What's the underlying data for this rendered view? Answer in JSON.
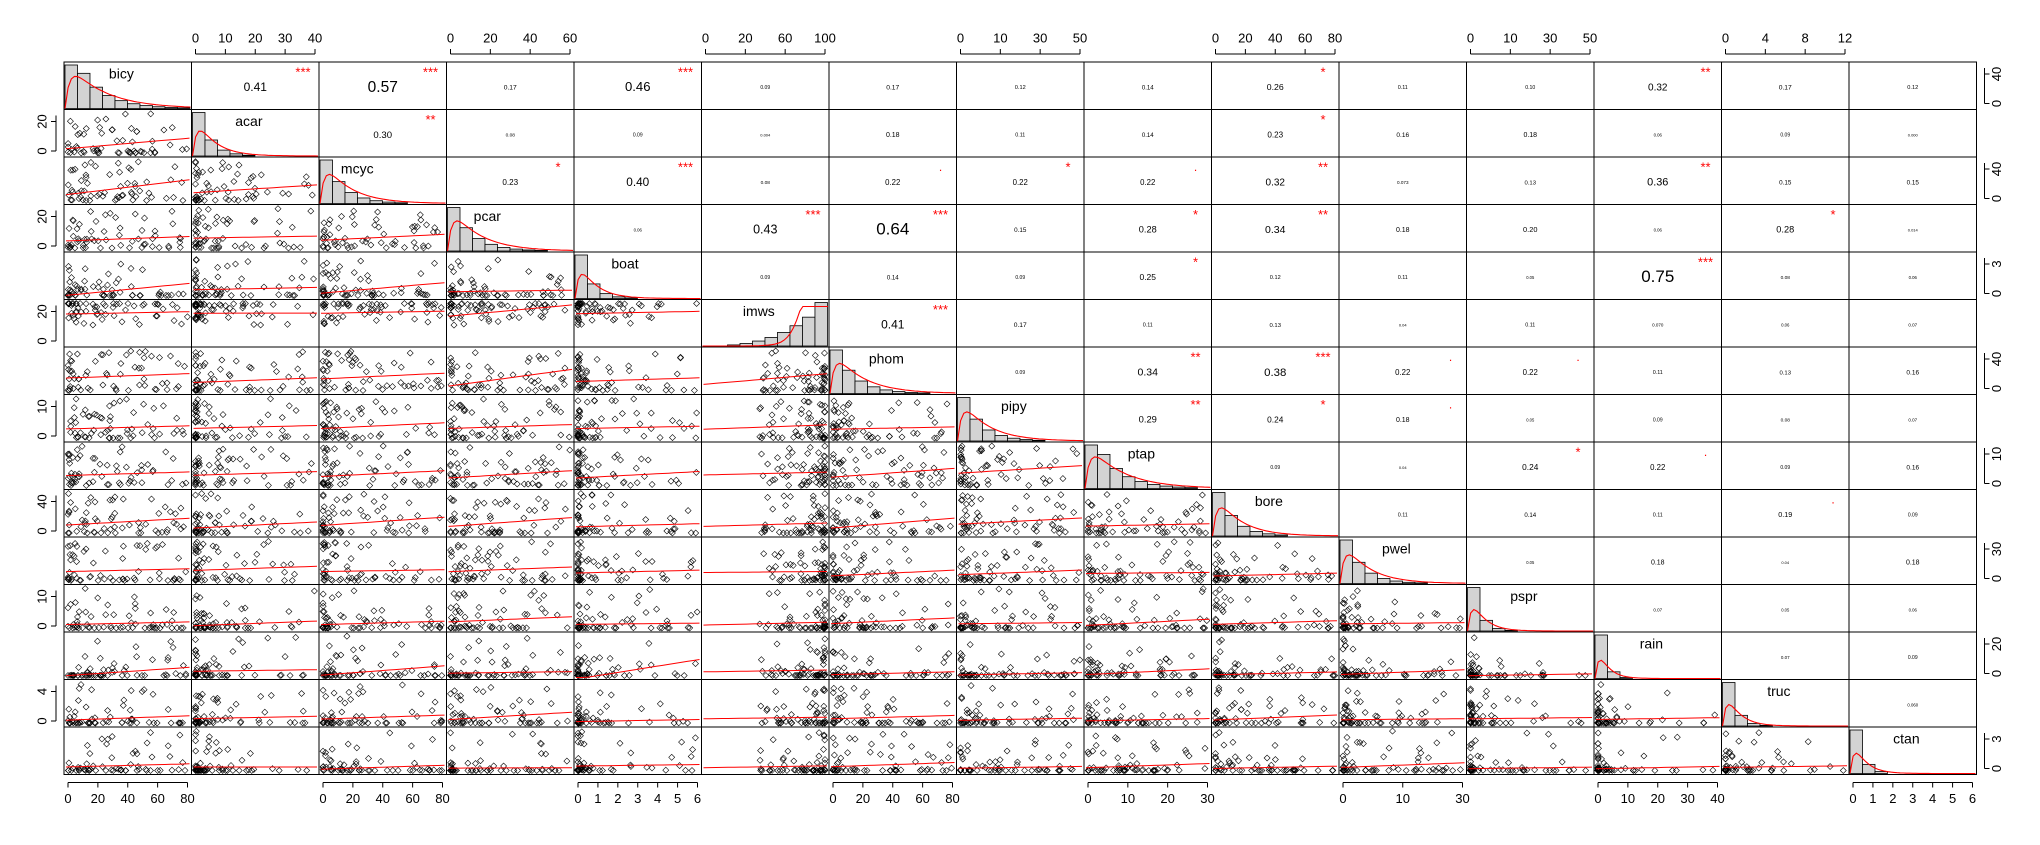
{
  "chart_data": {
    "type": "scatter_matrix",
    "variables": [
      "bicy",
      "acar",
      "mcyc",
      "pcar",
      "boat",
      "imws",
      "phom",
      "pipy",
      "ptap",
      "bore",
      "pwel",
      "pspr",
      "rain",
      "truc",
      "ctan"
    ],
    "diagonal": "histogram with density curve",
    "lower_panels": "scatter with loess smoother",
    "upper_panels": "Pearson correlation with significance stars",
    "colors": {
      "density": "#ff0000",
      "smoother": "#ff0000",
      "stars": "#ff0000",
      "points": "#000000",
      "hist_fill": "#d3d3d3"
    },
    "axis_ticks": {
      "bicy": [
        "0",
        "20",
        "40",
        "60",
        "80"
      ],
      "acar": [
        "0",
        "10",
        "20",
        "30",
        "40"
      ],
      "mcyc": [
        "0",
        "20",
        "40",
        "60",
        "80"
      ],
      "pcar": [
        "0",
        "20",
        "40",
        "60"
      ],
      "boat": [
        "0",
        "1",
        "2",
        "3",
        "4",
        "5",
        "6"
      ],
      "imws": [
        "0",
        "20",
        "60",
        "100"
      ],
      "phom": [
        "0",
        "20",
        "40",
        "60",
        "80"
      ],
      "pipy": [
        "0",
        "10",
        "30",
        "50"
      ],
      "ptap": [
        "0",
        "10",
        "20",
        "30"
      ],
      "bore": [
        "0",
        "20",
        "40",
        "60",
        "80"
      ],
      "pwel": [
        "0",
        "10",
        "30"
      ],
      "pspr": [
        "0",
        "10",
        "30",
        "50"
      ],
      "rain": [
        "0",
        "10",
        "20",
        "30",
        "40"
      ],
      "truc": [
        "0",
        "4",
        "8",
        "12"
      ],
      "ctan": [
        "0",
        "1",
        "2",
        "3",
        "4",
        "5",
        "6"
      ]
    },
    "correlations": [
      [
        "bicy",
        "acar",
        "0.41",
        "***"
      ],
      [
        "bicy",
        "mcyc",
        "0.57",
        "***"
      ],
      [
        "bicy",
        "pcar",
        "0.17",
        ""
      ],
      [
        "bicy",
        "boat",
        "0.46",
        "***"
      ],
      [
        "bicy",
        "imws",
        "0.09",
        ""
      ],
      [
        "bicy",
        "phom",
        "0.17",
        ""
      ],
      [
        "bicy",
        "pipy",
        "0.12",
        ""
      ],
      [
        "bicy",
        "ptap",
        "0.14",
        ""
      ],
      [
        "bicy",
        "bore",
        "0.26",
        "*"
      ],
      [
        "bicy",
        "pwel",
        "0.11",
        ""
      ],
      [
        "bicy",
        "pspr",
        "0.10",
        ""
      ],
      [
        "bicy",
        "rain",
        "0.32",
        "**"
      ],
      [
        "bicy",
        "truc",
        "0.17",
        ""
      ],
      [
        "bicy",
        "ctan",
        "0.12",
        ""
      ],
      [
        "acar",
        "mcyc",
        "0.30",
        "**"
      ],
      [
        "acar",
        "pcar",
        "0.08",
        ""
      ],
      [
        "acar",
        "boat",
        "0.09",
        ""
      ],
      [
        "acar",
        "imws",
        "0.004",
        ""
      ],
      [
        "acar",
        "phom",
        "0.18",
        ""
      ],
      [
        "acar",
        "pipy",
        "0.11",
        ""
      ],
      [
        "acar",
        "ptap",
        "0.14",
        ""
      ],
      [
        "acar",
        "bore",
        "0.23",
        "*"
      ],
      [
        "acar",
        "pwel",
        "0.16",
        ""
      ],
      [
        "acar",
        "pspr",
        "0.18",
        ""
      ],
      [
        "acar",
        "rain",
        "0.06",
        ""
      ],
      [
        "acar",
        "truc",
        "0.09",
        ""
      ],
      [
        "acar",
        "ctan",
        "0.000",
        ""
      ],
      [
        "mcyc",
        "pcar",
        "0.23",
        "*"
      ],
      [
        "mcyc",
        "boat",
        "0.40",
        "***"
      ],
      [
        "mcyc",
        "imws",
        "0.08",
        ""
      ],
      [
        "mcyc",
        "phom",
        "0.22",
        "."
      ],
      [
        "mcyc",
        "pipy",
        "0.22",
        "*"
      ],
      [
        "mcyc",
        "ptap",
        "0.22",
        "."
      ],
      [
        "mcyc",
        "bore",
        "0.32",
        "**"
      ],
      [
        "mcyc",
        "pwel",
        "0.073",
        ""
      ],
      [
        "mcyc",
        "pspr",
        "0.13",
        ""
      ],
      [
        "mcyc",
        "rain",
        "0.36",
        "**"
      ],
      [
        "mcyc",
        "truc",
        "0.15",
        ""
      ],
      [
        "mcyc",
        "ctan",
        "0.15",
        ""
      ],
      [
        "pcar",
        "boat",
        "0.06",
        ""
      ],
      [
        "pcar",
        "imws",
        "0.43",
        "***"
      ],
      [
        "pcar",
        "phom",
        "0.64",
        "***"
      ],
      [
        "pcar",
        "pipy",
        "0.15",
        ""
      ],
      [
        "pcar",
        "ptap",
        "0.28",
        "*"
      ],
      [
        "pcar",
        "bore",
        "0.34",
        "**"
      ],
      [
        "pcar",
        "pwel",
        "0.18",
        ""
      ],
      [
        "pcar",
        "pspr",
        "0.20",
        ""
      ],
      [
        "pcar",
        "rain",
        "0.06",
        ""
      ],
      [
        "pcar",
        "truc",
        "0.28",
        "*"
      ],
      [
        "pcar",
        "ctan",
        "0.014",
        ""
      ],
      [
        "boat",
        "imws",
        "0.09",
        ""
      ],
      [
        "boat",
        "phom",
        "0.14",
        ""
      ],
      [
        "boat",
        "pipy",
        "0.09",
        ""
      ],
      [
        "boat",
        "ptap",
        "0.25",
        "*"
      ],
      [
        "boat",
        "bore",
        "0.12",
        ""
      ],
      [
        "boat",
        "pwel",
        "0.11",
        ""
      ],
      [
        "boat",
        "pspr",
        "0.05",
        ""
      ],
      [
        "boat",
        "rain",
        "0.75",
        "***"
      ],
      [
        "boat",
        "truc",
        "0.08",
        ""
      ],
      [
        "boat",
        "ctan",
        "0.06",
        ""
      ],
      [
        "imws",
        "phom",
        "0.41",
        "***"
      ],
      [
        "imws",
        "pipy",
        "0.17",
        ""
      ],
      [
        "imws",
        "ptap",
        "0.11",
        ""
      ],
      [
        "imws",
        "bore",
        "0.13",
        ""
      ],
      [
        "imws",
        "pwel",
        "0.04",
        ""
      ],
      [
        "imws",
        "pspr",
        "0.11",
        ""
      ],
      [
        "imws",
        "rain",
        "0.070",
        ""
      ],
      [
        "imws",
        "truc",
        "0.06",
        ""
      ],
      [
        "imws",
        "ctan",
        "0.07",
        ""
      ],
      [
        "phom",
        "pipy",
        "0.09",
        ""
      ],
      [
        "phom",
        "ptap",
        "0.34",
        "**"
      ],
      [
        "phom",
        "bore",
        "0.38",
        "***"
      ],
      [
        "phom",
        "pwel",
        "0.22",
        "."
      ],
      [
        "phom",
        "pspr",
        "0.22",
        "."
      ],
      [
        "phom",
        "rain",
        "0.11",
        ""
      ],
      [
        "phom",
        "truc",
        "0.13",
        ""
      ],
      [
        "phom",
        "ctan",
        "0.16",
        ""
      ],
      [
        "pipy",
        "ptap",
        "0.29",
        "**"
      ],
      [
        "pipy",
        "bore",
        "0.24",
        "*"
      ],
      [
        "pipy",
        "pwel",
        "0.18",
        "."
      ],
      [
        "pipy",
        "pspr",
        "0.05",
        ""
      ],
      [
        "pipy",
        "rain",
        "0.09",
        ""
      ],
      [
        "pipy",
        "truc",
        "0.08",
        ""
      ],
      [
        "pipy",
        "ctan",
        "0.07",
        ""
      ],
      [
        "ptap",
        "bore",
        "0.09",
        ""
      ],
      [
        "ptap",
        "pwel",
        "0.04",
        ""
      ],
      [
        "ptap",
        "pspr",
        "0.24",
        "*"
      ],
      [
        "ptap",
        "rain",
        "0.22",
        "."
      ],
      [
        "ptap",
        "truc",
        "0.09",
        ""
      ],
      [
        "ptap",
        "ctan",
        "0.16",
        ""
      ],
      [
        "bore",
        "pwel",
        "0.11",
        ""
      ],
      [
        "bore",
        "pspr",
        "0.14",
        ""
      ],
      [
        "bore",
        "rain",
        "0.11",
        ""
      ],
      [
        "bore",
        "truc",
        "0.19",
        "."
      ],
      [
        "bore",
        "ctan",
        "0.09",
        ""
      ],
      [
        "pwel",
        "pspr",
        "0.05",
        ""
      ],
      [
        "pwel",
        "rain",
        "0.18",
        ""
      ],
      [
        "pwel",
        "truc",
        "0.04",
        ""
      ],
      [
        "pwel",
        "ctan",
        "0.18",
        ""
      ],
      [
        "pspr",
        "rain",
        "0.07",
        ""
      ],
      [
        "pspr",
        "truc",
        "0.05",
        ""
      ],
      [
        "pspr",
        "ctan",
        "0.06",
        ""
      ],
      [
        "rain",
        "truc",
        "0.07",
        ""
      ],
      [
        "rain",
        "ctan",
        "0.09",
        ""
      ],
      [
        "truc",
        "ctan",
        "0.060",
        ""
      ]
    ]
  }
}
